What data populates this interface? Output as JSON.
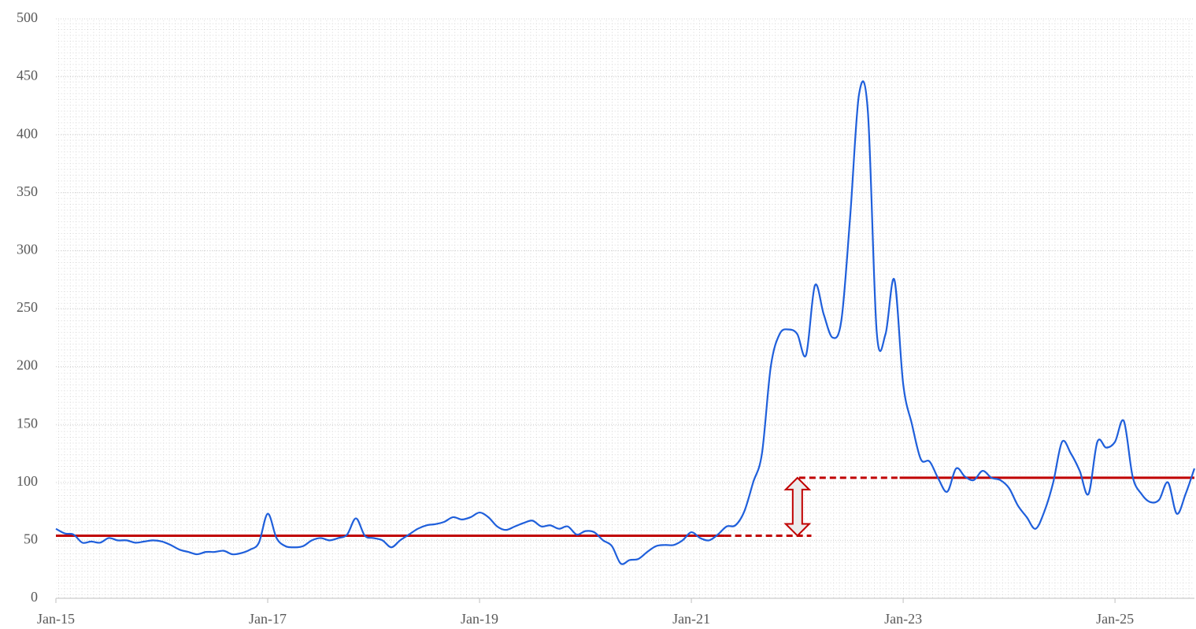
{
  "chart_data": {
    "type": "line",
    "categories": [
      "Jan-15",
      null,
      null,
      null,
      null,
      null,
      null,
      null,
      null,
      null,
      null,
      null,
      null,
      null,
      null,
      null,
      null,
      null,
      null,
      null,
      null,
      null,
      null,
      null,
      "Jan-17",
      null,
      null,
      null,
      null,
      null,
      null,
      null,
      null,
      null,
      null,
      null,
      null,
      null,
      null,
      null,
      null,
      null,
      null,
      null,
      null,
      null,
      null,
      null,
      "Jan-19",
      null,
      null,
      null,
      null,
      null,
      null,
      null,
      null,
      null,
      null,
      null,
      null,
      null,
      null,
      null,
      null,
      null,
      null,
      null,
      null,
      null,
      null,
      null,
      "Jan-21",
      null,
      null,
      null,
      null,
      null,
      null,
      null,
      null,
      null,
      null,
      null,
      null,
      null,
      null,
      null,
      null,
      null,
      null,
      null,
      null,
      null,
      null,
      null,
      "Jan-23",
      null,
      null,
      null,
      null,
      null,
      null,
      null,
      null,
      null,
      null,
      null,
      null,
      null,
      null,
      null,
      null,
      null,
      null,
      null,
      null,
      null,
      null,
      null,
      "Jan-25",
      null,
      null,
      null,
      null,
      null,
      null,
      null,
      null,
      null
    ],
    "series": [
      {
        "color": "#1f5fdb",
        "values": [
          60,
          56,
          55,
          48,
          49,
          48,
          52,
          50,
          50,
          48,
          49,
          50,
          49,
          46,
          42,
          40,
          38,
          40,
          40,
          41,
          38,
          39,
          42,
          48,
          73,
          52,
          45,
          44,
          45,
          50,
          52,
          50,
          52,
          55,
          69,
          54,
          52,
          50,
          44,
          50,
          55,
          60,
          63,
          64,
          66,
          70,
          68,
          70,
          74,
          70,
          62,
          59,
          62,
          65,
          67,
          62,
          63,
          60,
          62,
          55,
          58,
          57,
          50,
          45,
          30,
          33,
          34,
          40,
          45,
          46,
          46,
          50,
          57,
          52,
          50,
          55,
          62,
          63,
          75,
          100,
          125,
          200,
          228,
          232,
          228,
          210,
          270,
          245,
          225,
          240,
          330,
          435,
          420,
          230,
          228,
          275,
          185,
          150,
          120,
          118,
          103,
          92,
          112,
          105,
          102,
          110,
          104,
          102,
          95,
          80,
          70,
          60,
          75,
          100,
          135,
          125,
          110,
          90,
          135,
          130,
          135,
          153,
          105,
          90,
          83,
          85,
          100,
          73,
          90,
          112
        ]
      }
    ],
    "ylim": [
      0,
      500
    ],
    "yticks": [
      0,
      50,
      100,
      150,
      200,
      250,
      300,
      350,
      400,
      450,
      500
    ],
    "grid": true,
    "reference_lines": [
      {
        "value": 54,
        "color": "#c00000",
        "solid": [
          0,
          75.8
        ],
        "dashed": [
          75.8,
          85.6
        ]
      },
      {
        "value": 104,
        "color": "#c00000",
        "solid": [
          95.6,
          129
        ],
        "dashed": [
          84.2,
          95.6
        ]
      }
    ]
  }
}
